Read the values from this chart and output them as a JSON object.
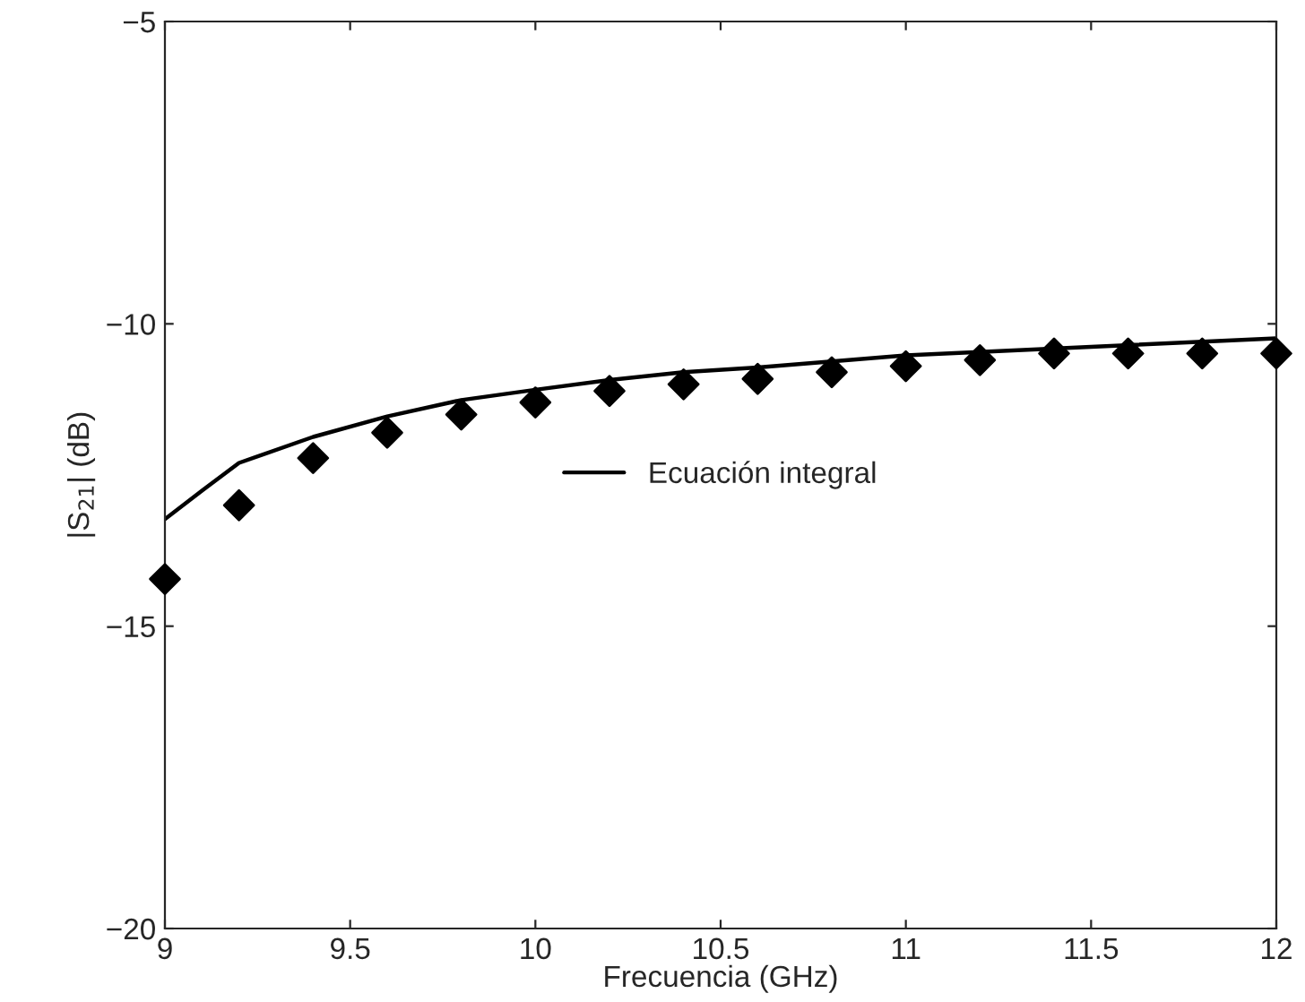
{
  "chart_data": {
    "type": "line",
    "xlabel": "Frecuencia (GHz)",
    "ylabel": "|S$_{21}$| (dB)",
    "xlim": [
      9,
      12
    ],
    "xticks": [
      9,
      9.5,
      10,
      10.5,
      11,
      11.5,
      12
    ],
    "ylim": [
      -20,
      -5
    ],
    "yticks": [
      {
        "value": -20,
        "label": "−20"
      },
      {
        "value": -15,
        "label": "−15"
      },
      {
        "value": -10,
        "label": "−10"
      },
      {
        "value": -5,
        "label": "−5"
      }
    ],
    "grid": false,
    "legend": "center",
    "series": [
      {
        "name": "Ecuación integral",
        "color": "#000000",
        "marker": "none",
        "line_style": "solid",
        "x": [
          9,
          9.1,
          9.2,
          9.4,
          9.6,
          9.8,
          10,
          10.2,
          10.4,
          10.6,
          11,
          11.5,
          12
        ],
        "values": [
          -13.23,
          -12.76,
          -12.3,
          -11.87,
          -11.53,
          -11.26,
          -11.09,
          -10.93,
          -10.8,
          -10.72,
          -10.52,
          -10.38,
          -10.24
        ]
      },
      {
        "type": "scatter",
        "color": "#000000",
        "marker": "diamond",
        "x": [
          9,
          9.2,
          9.4,
          9.6,
          9.8,
          10,
          10.2,
          10.4,
          10.6,
          10.8,
          11,
          11.2,
          11.4,
          11.6,
          11.8,
          12
        ],
        "values": [
          -14.22,
          -13.0,
          -12.22,
          -11.8,
          -11.5,
          -11.3,
          -11.11,
          -11.0,
          -10.91,
          -10.8,
          -10.7,
          -10.6,
          -10.49,
          -10.49,
          -10.49,
          -10.49
        ]
      }
    ]
  }
}
